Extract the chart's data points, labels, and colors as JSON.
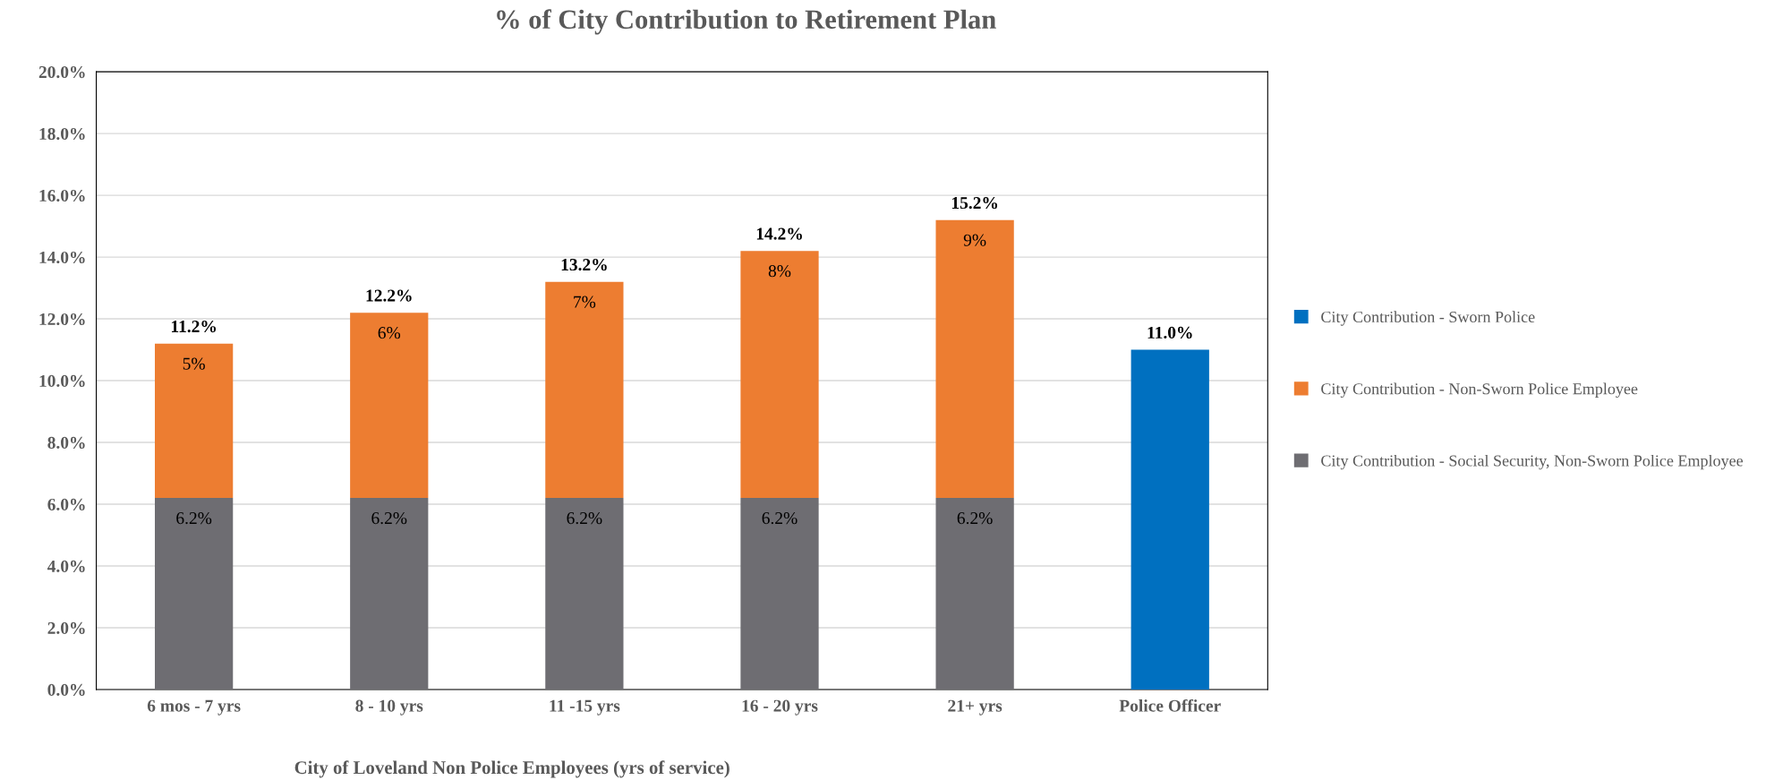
{
  "chart_data": {
    "type": "bar",
    "stacked": true,
    "title": "% of City Contribution to Retirement Plan",
    "xlabel": "City of Loveland Non Police Employees (yrs of service)",
    "categories": [
      "6 mos - 7 yrs",
      "8 - 10 yrs",
      "11 -15 yrs",
      "16 - 20 yrs",
      "21+ yrs",
      "Police Officer"
    ],
    "series": [
      {
        "name": "City Contribution - Social Security, Non-Sworn Police Employee",
        "color": "#6e6d72",
        "values": [
          6.2,
          6.2,
          6.2,
          6.2,
          6.2,
          null
        ],
        "value_labels": [
          "6.2%",
          "6.2%",
          "6.2%",
          "6.2%",
          "6.2%",
          null
        ]
      },
      {
        "name": "City Contribution - Non-Sworn Police Employee",
        "color": "#ed7d31",
        "values": [
          5,
          6,
          7,
          8,
          9,
          null
        ],
        "value_labels": [
          "5%",
          "6%",
          "7%",
          "8%",
          "9%",
          null
        ]
      },
      {
        "name": "City Contribution - Sworn Police",
        "color": "#0070c0",
        "values": [
          null,
          null,
          null,
          null,
          null,
          11.0
        ]
      }
    ],
    "totals": [
      "11.2%",
      "12.2%",
      "13.2%",
      "14.2%",
      "15.2%",
      "11.0%"
    ],
    "ylim": [
      0,
      20
    ],
    "yticks": [
      {
        "value": 0,
        "label": "0.0%"
      },
      {
        "value": 2,
        "label": "2.0%"
      },
      {
        "value": 4,
        "label": "4.0%"
      },
      {
        "value": 6,
        "label": "6.0%"
      },
      {
        "value": 8,
        "label": "8.0%"
      },
      {
        "value": 10,
        "label": "10.0%"
      },
      {
        "value": 12,
        "label": "12.0%"
      },
      {
        "value": 14,
        "label": "14.0%"
      },
      {
        "value": 16,
        "label": "16.0%"
      },
      {
        "value": 18,
        "label": "18.0%"
      },
      {
        "value": 20,
        "label": "20.0%"
      }
    ],
    "grid": "y",
    "legend": "right"
  }
}
